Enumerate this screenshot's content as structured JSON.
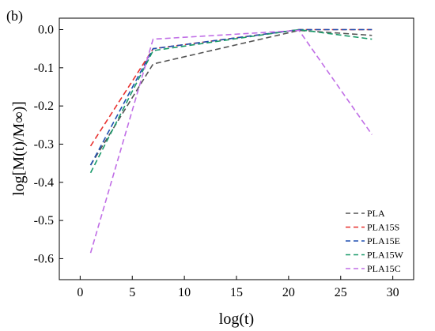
{
  "chart_data": {
    "type": "line",
    "panel_label": "(b)",
    "xlabel": "log(t)",
    "ylabel": "log[M(t)/M∞)]",
    "xlim": [
      -2,
      32
    ],
    "ylim": [
      -0.655,
      0.03
    ],
    "x_ticks": [
      0,
      5,
      10,
      15,
      20,
      25,
      30
    ],
    "y_ticks": [
      0.0,
      -0.1,
      -0.2,
      -0.3,
      -0.4,
      -0.5,
      -0.6
    ],
    "x_tick_labels": [
      "0",
      "5",
      "10",
      "15",
      "20",
      "25",
      "30"
    ],
    "y_tick_labels": [
      "0.0",
      "-0.1",
      "-0.2",
      "-0.3",
      "-0.4",
      "-0.5",
      "-0.6"
    ],
    "grid": false,
    "legend_position": "bottom-right",
    "series": [
      {
        "name": "PLA",
        "color": "#555555",
        "x": [
          1,
          7,
          21,
          28
        ],
        "y": [
          -0.355,
          -0.09,
          -0.002,
          -0.015
        ]
      },
      {
        "name": "PLA15S",
        "color": "#e8312f",
        "x": [
          1,
          7,
          21,
          28
        ],
        "y": [
          -0.305,
          -0.05,
          0.0,
          0.0
        ]
      },
      {
        "name": "PLA15E",
        "color": "#1f4fb0",
        "x": [
          1,
          7,
          21,
          28
        ],
        "y": [
          -0.355,
          -0.05,
          0.0,
          0.0
        ]
      },
      {
        "name": "PLA15W",
        "color": "#1a9a6a",
        "x": [
          1,
          7,
          21,
          28
        ],
        "y": [
          -0.375,
          -0.055,
          0.0,
          -0.025
        ]
      },
      {
        "name": "PLA15C",
        "color": "#c06ee6",
        "x": [
          1,
          7,
          21,
          28
        ],
        "y": [
          -0.585,
          -0.025,
          -0.002,
          -0.275
        ]
      }
    ]
  }
}
